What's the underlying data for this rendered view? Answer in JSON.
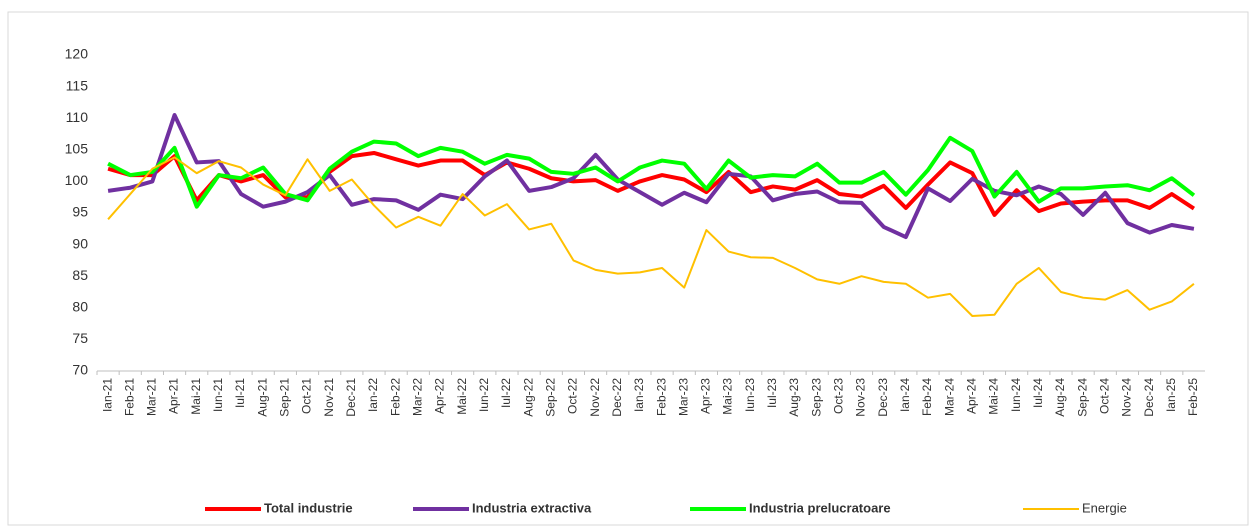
{
  "chart_data": {
    "type": "line",
    "categories": [
      "Ian-21",
      "Feb-21",
      "Mar-21",
      "Apr-21",
      "Mai-21",
      "Iun-21",
      "Iul-21",
      "Aug-21",
      "Sep-21",
      "Oct-21",
      "Nov-21",
      "Dec-21",
      "Ian-22",
      "Feb-22",
      "Mar-22",
      "Apr-22",
      "Mai-22",
      "Iun-22",
      "Iul-22",
      "Aug-22",
      "Sep-22",
      "Oct-22",
      "Nov-22",
      "Dec-22",
      "Ian-23",
      "Feb-23",
      "Mar-23",
      "Apr-23",
      "Mai-23",
      "Iun-23",
      "Iul-23",
      "Aug-23",
      "Sep-23",
      "Oct-23",
      "Nov-23",
      "Dec-23",
      "Ian-24",
      "Feb-24",
      "Mar-24",
      "Apr-24",
      "Mai-24",
      "Iun-24",
      "Iul-24",
      "Aug-24",
      "Sep-24",
      "Oct-24",
      "Nov-24",
      "Dec-24",
      "Ian-25",
      "Feb-25"
    ],
    "series": [
      {
        "name": "Total industrie",
        "color": "#ff0000",
        "values": [
          102,
          101,
          101,
          104,
          97,
          101,
          100,
          101,
          97.5,
          97.5,
          101.5,
          104,
          104.5,
          103.5,
          102.5,
          103.3,
          103.3,
          101,
          103,
          102,
          100.5,
          100,
          100.2,
          98.5,
          100,
          101,
          100.3,
          98.3,
          101.5,
          98.3,
          99.2,
          98.7,
          100.2,
          98,
          97.6,
          99.3,
          95.8,
          99.5,
          103,
          101.3,
          94.7,
          98.6,
          95.3,
          96.5,
          96.8,
          97,
          97,
          95.8,
          98,
          95.7
        ]
      },
      {
        "name": "Industria extractiva",
        "color": "#7030a0",
        "values": [
          98.5,
          99,
          100,
          110.5,
          103,
          103.2,
          98,
          96,
          96.8,
          98.3,
          101,
          96.3,
          97.2,
          97,
          95.5,
          97.9,
          97.2,
          100.8,
          103.3,
          98.5,
          99.1,
          100.5,
          104.2,
          100.3,
          98.3,
          96.3,
          98.2,
          96.7,
          101.2,
          100.8,
          97,
          98,
          98.4,
          96.7,
          96.6,
          92.8,
          91.2,
          98.9,
          96.9,
          100.4,
          98.5,
          97.8,
          99.2,
          98,
          94.7,
          98.2,
          93.4,
          91.9,
          93.1,
          92.5
        ]
      },
      {
        "name": "Industria prelucratoare",
        "color": "#00ff00",
        "values": [
          102.8,
          101,
          101.5,
          105.3,
          96,
          101,
          100.5,
          102.2,
          98,
          97,
          102,
          104.7,
          106.3,
          106,
          104,
          105.3,
          104.7,
          102.8,
          104.2,
          103.6,
          101.5,
          101.2,
          102.2,
          100,
          102.2,
          103.3,
          102.8,
          98.8,
          103.3,
          100.6,
          101,
          100.8,
          102.8,
          99.8,
          99.8,
          101.5,
          97.9,
          101.8,
          106.9,
          104.8,
          97.6,
          101.5,
          96.8,
          98.9,
          98.9,
          99.2,
          99.4,
          98.6,
          100.5,
          97.8
        ]
      },
      {
        "name": "Energie",
        "color": "#ffc000",
        "values": [
          94,
          98,
          102,
          103.8,
          101.3,
          103.2,
          102.2,
          99.5,
          97.8,
          103.5,
          98.5,
          100.3,
          96.2,
          92.7,
          94.4,
          93,
          98,
          94.6,
          96.4,
          92.4,
          93.3,
          87.5,
          86,
          85.4,
          85.6,
          86.3,
          83.2,
          92.3,
          88.9,
          88,
          87.9,
          86.3,
          84.5,
          83.8,
          85,
          84.1,
          83.8,
          81.6,
          82.2,
          78.7,
          78.9,
          83.8,
          86.3,
          82.5,
          81.6,
          81.3,
          82.8,
          79.7,
          81,
          83.8
        ]
      }
    ],
    "ylim": [
      70,
      120
    ],
    "yticks": [
      70,
      75,
      80,
      85,
      90,
      95,
      100,
      105,
      110,
      115,
      120
    ],
    "legend": "bottom"
  }
}
